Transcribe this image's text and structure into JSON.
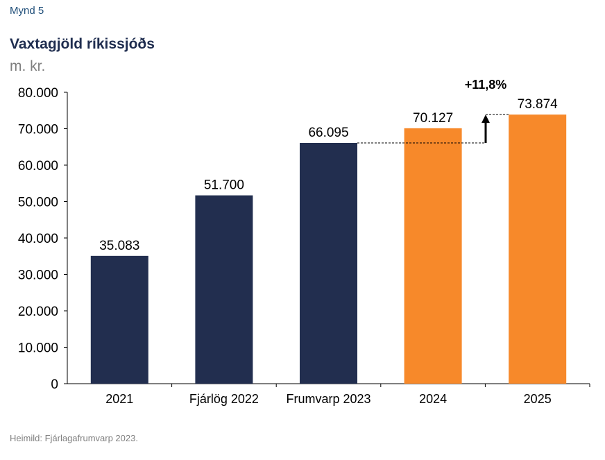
{
  "figure_label": "Mynd 5",
  "source": "Heimild: Fjárlagafrumvarp 2023.",
  "chart_data": {
    "type": "bar",
    "title": "Vaxtagjöld ríkissjóðs",
    "ylabel": "m. kr.",
    "categories": [
      "2021",
      "Fjárlög 2022",
      "Frumvarp 2023",
      "2024",
      "2025"
    ],
    "values": [
      35083,
      51700,
      66095,
      70127,
      73874
    ],
    "value_labels": [
      "35.083",
      "51.700",
      "66.095",
      "70.127",
      "73.874"
    ],
    "bar_colors": [
      "#222e4f",
      "#222e4f",
      "#222e4f",
      "#f7892a",
      "#f7892a"
    ],
    "ylim": [
      0,
      80000
    ],
    "yticks": [
      0,
      10000,
      20000,
      30000,
      40000,
      50000,
      60000,
      70000,
      80000
    ],
    "ytick_labels": [
      "0",
      "10.000",
      "20.000",
      "30.000",
      "40.000",
      "50.000",
      "60.000",
      "70.000",
      "80.000"
    ],
    "grid": false,
    "annotation": {
      "text": "+11,8%",
      "from_value": 66095,
      "to_value": 73874
    }
  }
}
